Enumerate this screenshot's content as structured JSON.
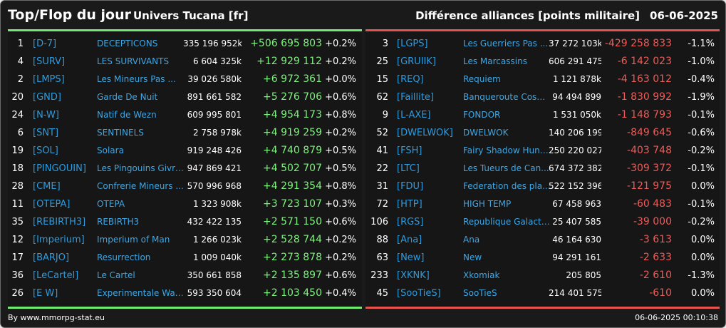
{
  "header": {
    "title": "Top/Flop du jour",
    "universe": "Univers Tucana [fr]",
    "subtitle": "Différence alliances [points militaire]",
    "date": "06-06-2025"
  },
  "colors": {
    "top_accent": "#6fec6f",
    "flop_accent": "#e8534f",
    "tag_color": "#2e9bde",
    "positive": "#7ef27e",
    "negative": "#ef5b58"
  },
  "top": [
    {
      "rank": "1",
      "tag": "[D-7]",
      "name": "DECEPTICONS",
      "points": "335 196 952k",
      "diff": "+506 695 803",
      "pct": "+0.2%"
    },
    {
      "rank": "4",
      "tag": "[SURV]",
      "name": "LES SURVIVANTS",
      "points": "6 604 325k",
      "diff": "+12 929 112",
      "pct": "+0.2%"
    },
    {
      "rank": "2",
      "tag": "[LMPS]",
      "name": "Les Mineurs Pas ...",
      "points": "39 026 580k",
      "diff": "+6 972 361",
      "pct": "+0.0%"
    },
    {
      "rank": "20",
      "tag": "[GND]",
      "name": "Garde De Nuit",
      "points": "891 661 582",
      "diff": "+5 276 706",
      "pct": "+0.6%"
    },
    {
      "rank": "24",
      "tag": "[N-W]",
      "name": "Natif de Wezn",
      "points": "609 995 801",
      "diff": "+4 954 173",
      "pct": "+0.8%"
    },
    {
      "rank": "6",
      "tag": "[SNT]",
      "name": "SENTINELS",
      "points": "2 758 978k",
      "diff": "+4 919 259",
      "pct": "+0.2%"
    },
    {
      "rank": "19",
      "tag": "[SOL]",
      "name": "Solara",
      "points": "919 248 426",
      "diff": "+4 740 879",
      "pct": "+0.5%"
    },
    {
      "rank": "18",
      "tag": "[PINGOUIN]",
      "name": "Les Pingouins Givre...",
      "points": "947 869 421",
      "diff": "+4 502 707",
      "pct": "+0.5%"
    },
    {
      "rank": "28",
      "tag": "[CME]",
      "name": "Confrerie Mineurs ...",
      "points": "570 996 968",
      "diff": "+4 291 354",
      "pct": "+0.8%"
    },
    {
      "rank": "11",
      "tag": "[OTEPA]",
      "name": "OTEPA",
      "points": "1 323 908k",
      "diff": "+3 723 107",
      "pct": "+0.3%"
    },
    {
      "rank": "35",
      "tag": "[REBIRTH3]",
      "name": "REBIRTH3",
      "points": "432 422 135",
      "diff": "+2 571 150",
      "pct": "+0.6%"
    },
    {
      "rank": "12",
      "tag": "[Imperium]",
      "name": "Imperium of Man",
      "points": "1 266 023k",
      "diff": "+2 528 744",
      "pct": "+0.2%"
    },
    {
      "rank": "17",
      "tag": "[BARJO]",
      "name": "Resurrection",
      "points": "1 009 040k",
      "diff": "+2 273 878",
      "pct": "+0.2%"
    },
    {
      "rank": "36",
      "tag": "[LeCartel]",
      "name": "Le Cartel",
      "points": "350 661 858",
      "diff": "+2 135 897",
      "pct": "+0.6%"
    },
    {
      "rank": "26",
      "tag": "[E W]",
      "name": "Experimentale Wav...",
      "points": "593 350 604",
      "diff": "+2 103 450",
      "pct": "+0.4%"
    }
  ],
  "flop": [
    {
      "rank": "3",
      "tag": "[LGPS]",
      "name": "Les Guerriers Pas ...",
      "points": "37 272 103k",
      "diff": "-429 258 833",
      "pct": "-1.1%"
    },
    {
      "rank": "25",
      "tag": "[GRUIIK]",
      "name": "Les Marcassins",
      "points": "606 291 475",
      "diff": "-6 142 023",
      "pct": "-1.0%"
    },
    {
      "rank": "15",
      "tag": "[REQ]",
      "name": "Requiem",
      "points": "1 121 878k",
      "diff": "-4 163 012",
      "pct": "-0.4%"
    },
    {
      "rank": "62",
      "tag": "[Faillite]",
      "name": "Banqueroute Cosm...",
      "points": "94 494 899",
      "diff": "-1 830 992",
      "pct": "-1.9%"
    },
    {
      "rank": "9",
      "tag": "[L-AXE]",
      "name": "FONDOR",
      "points": "1 531 050k",
      "diff": "-1 148 793",
      "pct": "-0.1%"
    },
    {
      "rank": "52",
      "tag": "[DWELWOK]",
      "name": "DWELWOK",
      "points": "140 206 199",
      "diff": "-849 645",
      "pct": "-0.6%"
    },
    {
      "rank": "41",
      "tag": "[FSH]",
      "name": "Fairy Shadow Hunte...",
      "points": "250 220 027",
      "diff": "-403 748",
      "pct": "-0.2%"
    },
    {
      "rank": "22",
      "tag": "[LTC]",
      "name": "Les Tueurs de Can...",
      "points": "674 372 382",
      "diff": "-309 372",
      "pct": "-0.1%"
    },
    {
      "rank": "31",
      "tag": "[FDU]",
      "name": "Federation des pla...",
      "points": "522 152 396",
      "diff": "-121 975",
      "pct": "0.0%"
    },
    {
      "rank": "72",
      "tag": "[HTP]",
      "name": "HIGH TEMP",
      "points": "67 458 963",
      "diff": "-60 483",
      "pct": "-0.1%"
    },
    {
      "rank": "106",
      "tag": "[RGS]",
      "name": "Republique Galacti...",
      "points": "25 407 585",
      "diff": "-39 000",
      "pct": "-0.2%"
    },
    {
      "rank": "88",
      "tag": "[Ana]",
      "name": "Ana",
      "points": "46 164 630",
      "diff": "-3 613",
      "pct": "0.0%"
    },
    {
      "rank": "63",
      "tag": "[New]",
      "name": "New",
      "points": "94 291 161",
      "diff": "-2 633",
      "pct": "0.0%"
    },
    {
      "rank": "233",
      "tag": "[XKNK]",
      "name": "Xkomiak",
      "points": "205 805",
      "diff": "-2 610",
      "pct": "-1.3%"
    },
    {
      "rank": "45",
      "tag": "[SooTieS]",
      "name": "SooTieS",
      "points": "214 401 575",
      "diff": "-610",
      "pct": "0.0%"
    }
  ],
  "footer": {
    "source": "By www.mmorpg-stat.eu",
    "timestamp": "06-06-2025 00:10:38"
  }
}
